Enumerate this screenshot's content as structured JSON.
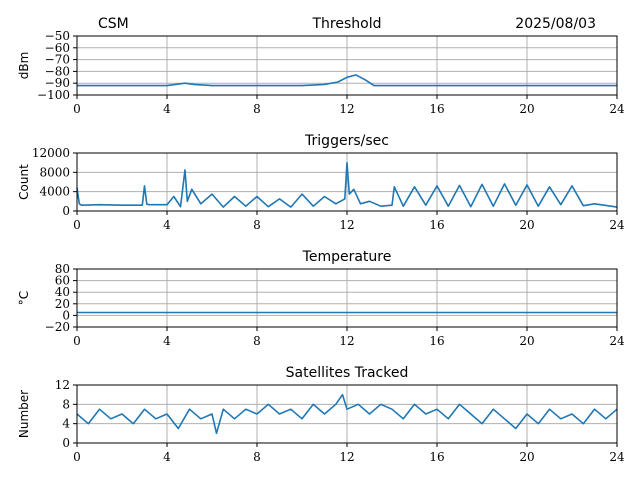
{
  "header": {
    "station": "CSM",
    "date": "2025/08/03"
  },
  "colors": {
    "series": "#1f77b4",
    "grid": "#b0b0b0",
    "axis": "#000000"
  },
  "chart_data": [
    {
      "type": "line",
      "title": "Threshold",
      "ylabel": "dBm",
      "xlim": [
        0,
        24
      ],
      "ylim": [
        -100,
        -50
      ],
      "xticks": [
        0,
        4,
        8,
        12,
        16,
        20,
        24
      ],
      "yticks": [
        -100,
        -90,
        -80,
        -70,
        -60,
        -50
      ],
      "grid": true,
      "series": [
        {
          "x": [
            0,
            1,
            2,
            3,
            4,
            4.8,
            5.2,
            6,
            8,
            10,
            11,
            11.6,
            12,
            12.4,
            12.8,
            13.2,
            14,
            16,
            18,
            20,
            22,
            24
          ],
          "y": [
            -92,
            -92,
            -92,
            -92,
            -92,
            -90,
            -91,
            -92,
            -92,
            -92,
            -91,
            -89,
            -85,
            -83,
            -87,
            -92,
            -92,
            -92,
            -92,
            -92,
            -92,
            -92
          ]
        }
      ]
    },
    {
      "type": "line",
      "title": "Triggers/sec",
      "ylabel": "Count",
      "xlim": [
        0,
        24
      ],
      "ylim": [
        0,
        12000
      ],
      "xticks": [
        0,
        4,
        8,
        12,
        16,
        20,
        24
      ],
      "yticks": [
        0,
        4000,
        8000,
        12000
      ],
      "grid": true,
      "series": [
        {
          "x": [
            0,
            0.1,
            0.2,
            1,
            2,
            2.9,
            3.0,
            3.1,
            3.2,
            4,
            4.3,
            4.6,
            4.8,
            4.9,
            5.1,
            5.5,
            6,
            6.5,
            7,
            7.5,
            8,
            8.5,
            9,
            9.5,
            10,
            10.5,
            11,
            11.5,
            11.9,
            12.0,
            12.1,
            12.3,
            12.6,
            13,
            13.5,
            14,
            14.1,
            14.5,
            15,
            15.5,
            16,
            16.5,
            17,
            17.5,
            18,
            18.5,
            19,
            19.5,
            20,
            20.5,
            21,
            21.5,
            22,
            22.5,
            23,
            24
          ],
          "y": [
            4800,
            1500,
            1200,
            1300,
            1200,
            1200,
            5200,
            1400,
            1300,
            1300,
            3000,
            900,
            8500,
            2000,
            4500,
            1500,
            3500,
            800,
            3000,
            1000,
            3000,
            900,
            2500,
            800,
            3500,
            1000,
            3000,
            1500,
            2500,
            10000,
            3500,
            4500,
            1500,
            2000,
            1000,
            1200,
            5000,
            1000,
            5000,
            1200,
            5200,
            1000,
            5300,
            900,
            5500,
            1000,
            5600,
            1200,
            5400,
            1000,
            5000,
            1300,
            5200,
            1100,
            1500,
            800
          ]
        }
      ]
    },
    {
      "type": "line",
      "title": "Temperature",
      "ylabel": "°C",
      "xlim": [
        0,
        24
      ],
      "ylim": [
        -20,
        80
      ],
      "xticks": [
        0,
        4,
        8,
        12,
        16,
        20,
        24
      ],
      "yticks": [
        -20,
        0,
        20,
        40,
        60,
        80
      ],
      "grid": true,
      "series": [
        {
          "x": [
            0,
            24
          ],
          "y": [
            5,
            5
          ]
        }
      ]
    },
    {
      "type": "line",
      "title": "Satellites Tracked",
      "ylabel": "Number",
      "xlim": [
        0,
        24
      ],
      "ylim": [
        0,
        12
      ],
      "xticks": [
        0,
        4,
        8,
        12,
        16,
        20,
        24
      ],
      "yticks": [
        0,
        4,
        8,
        12
      ],
      "grid": true,
      "series": [
        {
          "x": [
            0,
            0.5,
            1,
            1.5,
            2,
            2.5,
            3,
            3.5,
            4,
            4.5,
            5,
            5.5,
            6,
            6.2,
            6.5,
            7,
            7.5,
            8,
            8.5,
            9,
            9.5,
            10,
            10.5,
            11,
            11.5,
            11.8,
            12,
            12.5,
            13,
            13.5,
            14,
            14.5,
            15,
            15.5,
            16,
            16.5,
            17,
            17.5,
            18,
            18.5,
            19,
            19.5,
            20,
            20.5,
            21,
            21.5,
            22,
            22.5,
            23,
            23.5,
            24
          ],
          "y": [
            6,
            4,
            7,
            5,
            6,
            4,
            7,
            5,
            6,
            3,
            7,
            5,
            6,
            2,
            7,
            5,
            7,
            6,
            8,
            6,
            7,
            5,
            8,
            6,
            8,
            10,
            7,
            8,
            6,
            8,
            7,
            5,
            8,
            6,
            7,
            5,
            8,
            6,
            4,
            7,
            5,
            3,
            6,
            4,
            7,
            5,
            6,
            4,
            7,
            5,
            7
          ]
        }
      ]
    }
  ]
}
